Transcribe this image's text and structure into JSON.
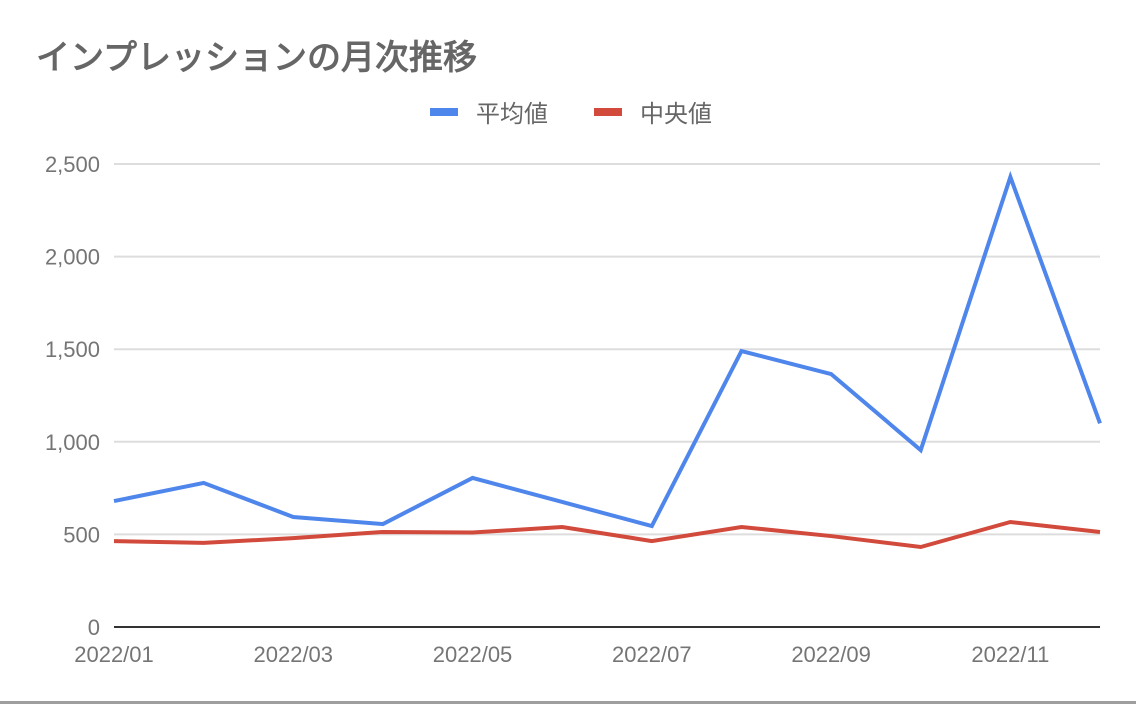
{
  "chart_data": {
    "type": "line",
    "title": "インプレッションの月次推移",
    "xlabel": "",
    "ylabel": "",
    "categories": [
      "2022/01",
      "2022/02",
      "2022/03",
      "2022/04",
      "2022/05",
      "2022/06",
      "2022/07",
      "2022/08",
      "2022/09",
      "2022/10",
      "2022/11",
      "2022/12"
    ],
    "x_tick_labels": [
      "2022/01",
      "2022/03",
      "2022/05",
      "2022/07",
      "2022/09",
      "2022/11"
    ],
    "y_tick_labels": [
      "0",
      "500",
      "1,000",
      "1,500",
      "2,000",
      "2,500"
    ],
    "ylim": [
      0,
      2500
    ],
    "grid": true,
    "legend_position": "top",
    "series": [
      {
        "name": "平均値",
        "color": "#4f86ec",
        "values": [
          680,
          778,
          594,
          556,
          805,
          675,
          545,
          1490,
          1366,
          955,
          2430,
          1100
        ]
      },
      {
        "name": "中央値",
        "color": "#d14a3c",
        "values": [
          464,
          454,
          480,
          513,
          510,
          540,
          464,
          540,
          491,
          432,
          567,
          513
        ]
      }
    ]
  },
  "colors": {
    "grid": "#dddddd",
    "axis": "#333333",
    "text": "#757575",
    "title": "#666666"
  }
}
